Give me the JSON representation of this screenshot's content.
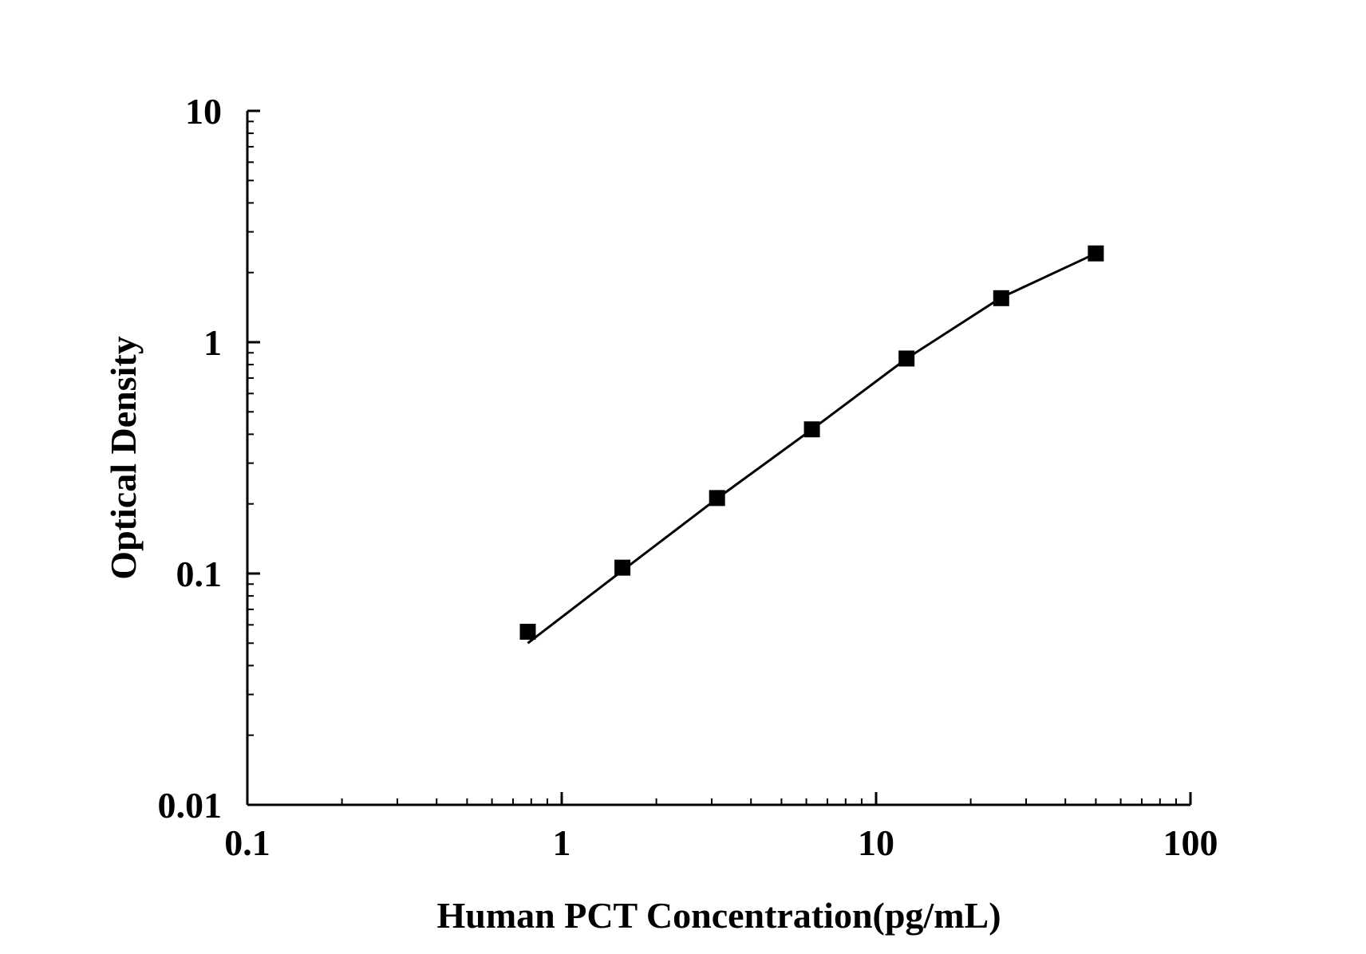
{
  "chart_data": {
    "type": "scatter",
    "title": "",
    "xlabel": "Human PCT Concentration(pg/mL)",
    "ylabel": "Optical Density",
    "x_scale": "log",
    "y_scale": "log",
    "xlim": [
      0.1,
      100
    ],
    "ylim": [
      0.01,
      10
    ],
    "x_ticks": [
      0.1,
      1,
      10,
      100
    ],
    "x_tick_labels": [
      "0.1",
      "1",
      "10",
      "100"
    ],
    "y_ticks": [
      0.01,
      0.1,
      1,
      10
    ],
    "y_tick_labels": [
      "0.01",
      "0.1",
      "1",
      "10"
    ],
    "grid": false,
    "legend": "none",
    "series": [
      {
        "marker": "square",
        "color": "#000000",
        "x": [
          0.78,
          1.56,
          3.12,
          6.25,
          12.5,
          25,
          50
        ],
        "y": [
          0.056,
          0.106,
          0.212,
          0.42,
          0.85,
          1.55,
          2.42
        ]
      }
    ],
    "fit_line": {
      "color": "#000000",
      "x": [
        0.78,
        1.56,
        3.12,
        6.25,
        12.5,
        25,
        50
      ],
      "y": [
        0.05,
        0.103,
        0.211,
        0.42,
        0.85,
        1.56,
        2.42
      ]
    }
  }
}
